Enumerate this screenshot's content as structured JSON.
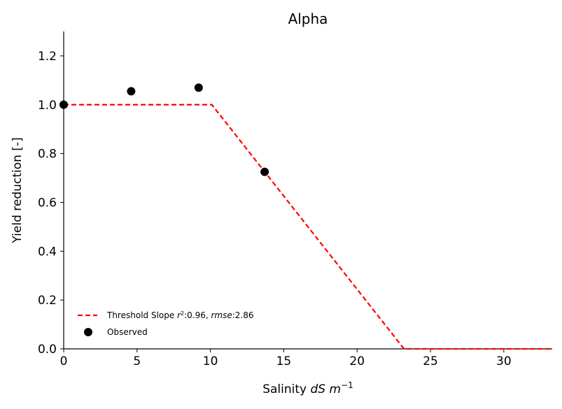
{
  "chart_data": {
    "type": "line",
    "title": "Alpha",
    "xlabel_prefix": "Salinity ",
    "xlabel_math": "dS m",
    "xlabel_exp": "−1",
    "ylabel": "Yield reduction [-]",
    "xlim": [
      0,
      33.3
    ],
    "ylim": [
      0,
      1.3
    ],
    "xticks": [
      0,
      5,
      10,
      15,
      20,
      25,
      30
    ],
    "yticks": [
      0.0,
      0.2,
      0.4,
      0.6,
      0.8,
      1.0,
      1.2
    ],
    "xtick_labels": [
      "0",
      "5",
      "10",
      "15",
      "20",
      "25",
      "30"
    ],
    "ytick_labels": [
      "0.0",
      "0.2",
      "0.4",
      "0.6",
      "0.8",
      "1.0",
      "1.2"
    ],
    "grid": false,
    "legend_position": "lower-left",
    "series": [
      {
        "name": "Threshold Slope",
        "style": "dashed",
        "color": "#ff0000",
        "x": [
          0,
          10.1,
          23.2,
          33.3
        ],
        "y": [
          1.0,
          1.0,
          0.0,
          0.0
        ]
      },
      {
        "name": "Observed",
        "style": "scatter",
        "color": "#000000",
        "x": [
          0,
          4.6,
          9.2,
          13.7
        ],
        "y": [
          1.0,
          1.055,
          1.07,
          0.725
        ]
      }
    ],
    "legend": [
      {
        "pre": "Threshold Slope ",
        "m1": "r",
        "sup": "2",
        "mid": ":0.96, ",
        "m2": "rmse",
        "post": ":2.86"
      },
      {
        "label": "Observed"
      }
    ]
  }
}
